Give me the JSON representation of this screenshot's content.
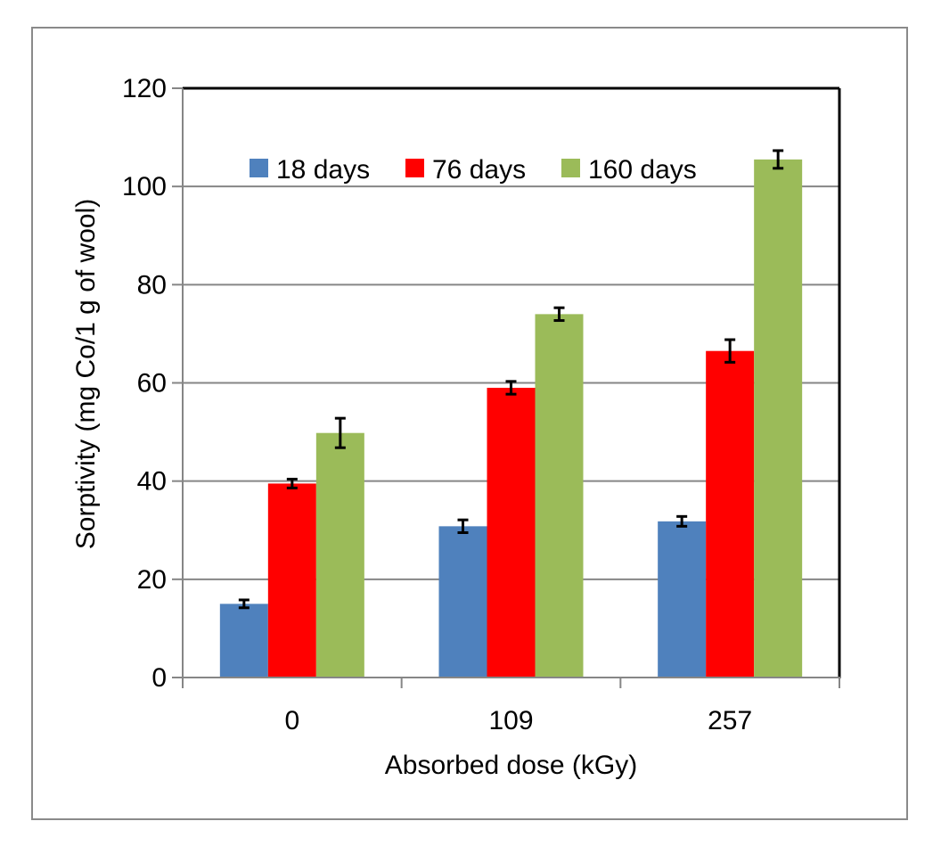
{
  "chart_data": {
    "type": "bar",
    "title": "",
    "xlabel": "Absorbed dose (kGy)",
    "ylabel": "Sorptivity (mg Co/1 g of wool)",
    "categories": [
      "0",
      "109",
      "257"
    ],
    "ylim": [
      0,
      120
    ],
    "yticks": [
      0,
      20,
      40,
      60,
      80,
      100,
      120
    ],
    "ytick_labels": [
      "0",
      "20",
      "40",
      "60",
      "80",
      "100",
      "120"
    ],
    "grid": true,
    "legend_position": "top",
    "series": [
      {
        "name": "18 days",
        "color": "#4f81bd",
        "values": [
          15.0,
          30.8,
          31.8
        ],
        "errors": [
          0.8,
          1.3,
          1.0
        ]
      },
      {
        "name": "76 days",
        "color": "#ff0000",
        "values": [
          39.5,
          59.0,
          66.5
        ],
        "errors": [
          0.9,
          1.3,
          2.3
        ]
      },
      {
        "name": "160 days",
        "color": "#9bbb59",
        "values": [
          49.8,
          74.0,
          105.5
        ],
        "errors": [
          3.0,
          1.3,
          1.8
        ]
      }
    ]
  }
}
